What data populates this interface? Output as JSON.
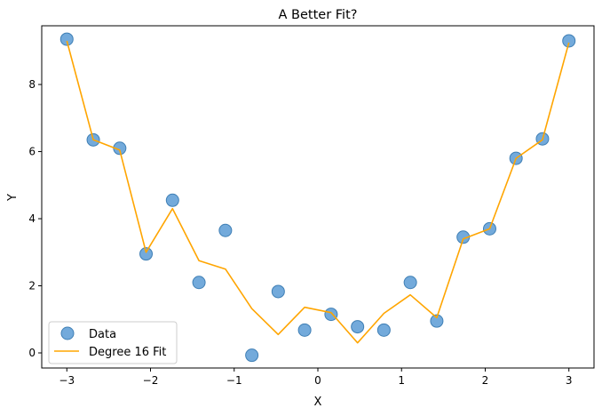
{
  "chart_data": {
    "type": "scatter",
    "title": "A Better Fit?",
    "xlabel": "X",
    "ylabel": "Y",
    "xlim": [
      -3.3,
      3.3
    ],
    "ylim": [
      -0.45,
      9.75
    ],
    "xticks": [
      -3,
      -2,
      -1,
      0,
      1,
      2,
      3
    ],
    "xtick_labels": [
      "−3",
      "−2",
      "−1",
      "0",
      "1",
      "2",
      "3"
    ],
    "yticks": [
      0,
      2,
      4,
      6,
      8
    ],
    "ytick_labels": [
      "0",
      "2",
      "4",
      "6",
      "8"
    ],
    "grid": false,
    "legend_position": "lower-left",
    "series": [
      {
        "name": "Data",
        "kind": "scatter",
        "color": "#5b9bd5",
        "x": [
          -3.0,
          -2.684,
          -2.368,
          -2.053,
          -1.737,
          -1.421,
          -1.105,
          -0.789,
          -0.474,
          -0.158,
          0.158,
          0.474,
          0.789,
          1.105,
          1.421,
          1.737,
          2.053,
          2.368,
          2.684,
          3.0
        ],
        "y": [
          9.35,
          6.35,
          6.1,
          2.95,
          4.55,
          2.1,
          3.65,
          -0.07,
          1.83,
          0.68,
          1.15,
          0.78,
          0.68,
          2.1,
          0.95,
          3.45,
          3.7,
          5.8,
          6.38,
          9.3
        ]
      },
      {
        "name": "Degree 16 Fit",
        "kind": "line",
        "color": "#ffa500",
        "x": [
          -3.0,
          -2.684,
          -2.368,
          -2.053,
          -1.737,
          -1.421,
          -1.105,
          -0.789,
          -0.474,
          -0.158,
          0.158,
          0.474,
          0.789,
          1.105,
          1.421,
          1.737,
          2.053,
          2.368,
          2.684,
          3.0
        ],
        "y": [
          9.3,
          6.35,
          6.05,
          3.0,
          4.3,
          2.75,
          2.5,
          1.32,
          0.55,
          1.36,
          1.2,
          0.3,
          1.18,
          1.73,
          1.05,
          3.4,
          3.7,
          5.8,
          6.35,
          9.25
        ]
      }
    ]
  }
}
